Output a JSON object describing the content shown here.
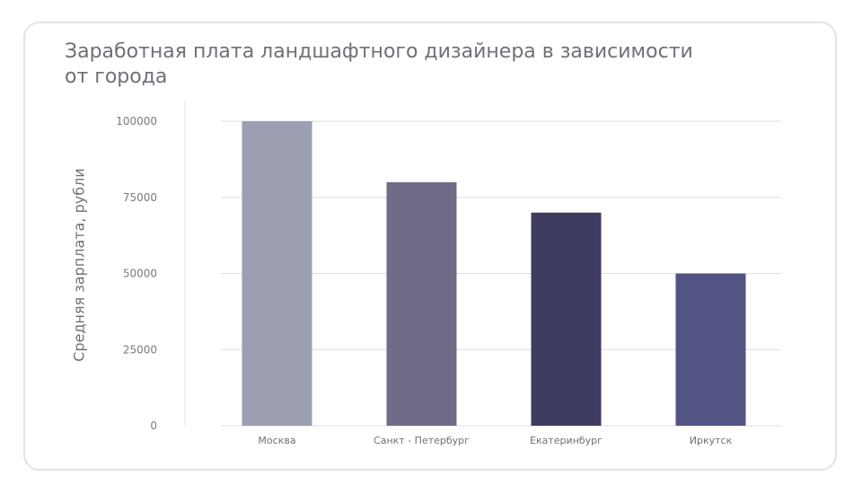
{
  "chart_data": {
    "type": "bar",
    "title": "Заработная плата ландшафтного дизайнера в зависимости от города",
    "title_lines": [
      "Заработная плата ландшафтного дизайнера в зависимости",
      "от города"
    ],
    "ylabel": "Средняя зарплата, рубли",
    "xlabel": "",
    "categories": [
      "Москва",
      "Санкт - Петербург",
      "Екатеринбург",
      "Иркутск"
    ],
    "values": [
      100000,
      80000,
      70000,
      50000
    ],
    "colors": [
      "#9c9fb2",
      "#706c88",
      "#3f3c62",
      "#525584"
    ],
    "ylim": [
      0,
      100000
    ],
    "yticks": [
      "0",
      "25000",
      "50000",
      "75000",
      "100000"
    ],
    "ytick_values": [
      0,
      25000,
      50000,
      75000,
      100000
    ],
    "grid": true,
    "legend": "none"
  }
}
